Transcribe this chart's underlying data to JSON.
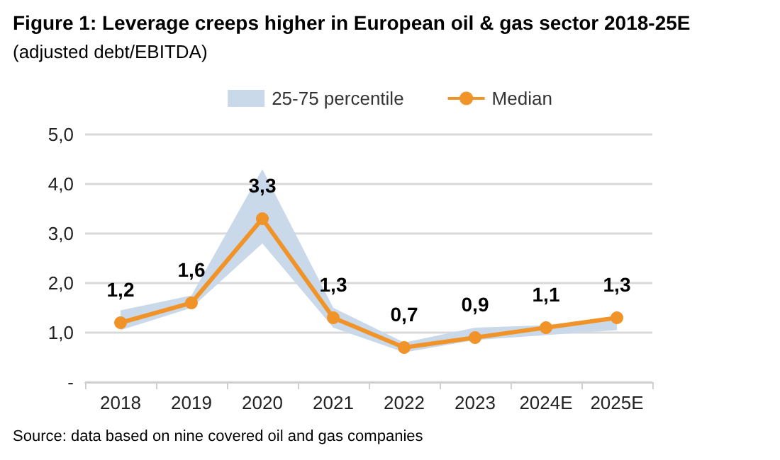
{
  "chart_data": {
    "type": "line",
    "title": "Figure 1: Leverage creeps higher in European oil & gas sector 2018-25E",
    "subtitle": "(adjusted debt/EBITDA)",
    "categories": [
      "2018",
      "2019",
      "2020",
      "2021",
      "2022",
      "2023",
      "2024E",
      "2025E"
    ],
    "series": [
      {
        "name": "25-75 percentile",
        "type": "area",
        "color": "#c9d9ea",
        "values": [
          null,
          null,
          null,
          null,
          null,
          null,
          null,
          null
        ]
      },
      {
        "name": "Median",
        "marker": "circle",
        "lower": [
          1.05,
          1.5,
          2.8,
          1.1,
          0.6,
          0.85,
          0.95,
          1.05
        ],
        "upper": [
          1.45,
          1.75,
          4.3,
          1.5,
          0.8,
          1.1,
          1.15,
          1.3
        ],
        "color": "#f0942a",
        "values": [
          1.2,
          1.6,
          3.3,
          1.3,
          0.7,
          0.9,
          1.1,
          1.3
        ],
        "value_labels": [
          "1,2",
          "1,6",
          "3,3",
          "1,3",
          "0,7",
          "0,9",
          "1,1",
          "1,3"
        ]
      }
    ],
    "ylim": [
      0,
      5
    ],
    "yticks": [
      {
        "value": 0,
        "label": "-"
      },
      {
        "value": 1,
        "label": "1,0"
      },
      {
        "value": 2,
        "label": "2,0"
      },
      {
        "value": 3,
        "label": "3,0"
      },
      {
        "value": 4,
        "label": "4,0"
      },
      {
        "value": 5,
        "label": "5,0"
      }
    ],
    "grid": "y",
    "legend": "top",
    "line_style": "solid",
    "annotations": [
      "Source: data based on nine covered oil and gas companies"
    ]
  }
}
